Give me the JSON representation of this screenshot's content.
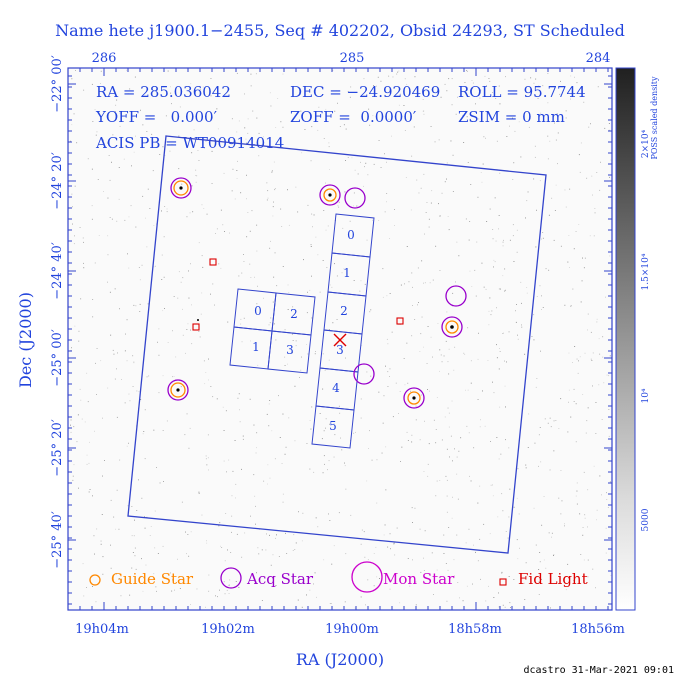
{
  "title": "Name hete j1900.1−2455, Seq # 402202, Obsid 24293, ST Scheduled",
  "info": {
    "line1": [
      "RA = 285.036042",
      "DEC = −24.920469",
      "ROLL = 95.7744"
    ],
    "line2": [
      "YOFF =   0.000′",
      "ZOFF =  0.0000′",
      "ZSIM = 0 mm"
    ],
    "line3": "ACIS PB = WT00914014"
  },
  "axes": {
    "xlabel": "RA (J2000)",
    "ylabel": "Dec (J2000)",
    "top_ticks": [
      "286",
      "285",
      "284"
    ],
    "bottom_ticks": [
      "19h04m",
      "19h02m",
      "19h00m",
      "18h58m",
      "18h56m"
    ],
    "left_ticks": [
      "−22° 00′",
      "−24° 20′",
      "−24° 40′",
      "−25° 00′",
      "−25° 20′",
      "−25° 40′"
    ]
  },
  "colorbar": {
    "label_line1": "2×10⁴",
    "label_line2": "POSS scaled density",
    "ticks": [
      "1.5×10⁴",
      "10⁴",
      "5000"
    ]
  },
  "ccds": {
    "ACIS-S": [
      "0",
      "1",
      "2",
      "3",
      "4",
      "5"
    ],
    "ACIS-I": [
      "0",
      "2",
      "1",
      "3"
    ]
  },
  "legend": [
    {
      "label": "Guide Star",
      "color": "#ff8800"
    },
    {
      "label": "Acq Star",
      "color": "#9900cc"
    },
    {
      "label": "Mon Star",
      "color": "#cc00cc"
    },
    {
      "label": "Fid Light",
      "color": "#dd0000"
    }
  ],
  "footer": "dcastro 31-Mar-2021 09:01",
  "colors": {
    "axis": "#2244dd",
    "frame": "#3344cc",
    "guide": "#ff8800",
    "acq": "#9900cc",
    "mon": "#cc00cc",
    "fid": "#dd0000"
  }
}
